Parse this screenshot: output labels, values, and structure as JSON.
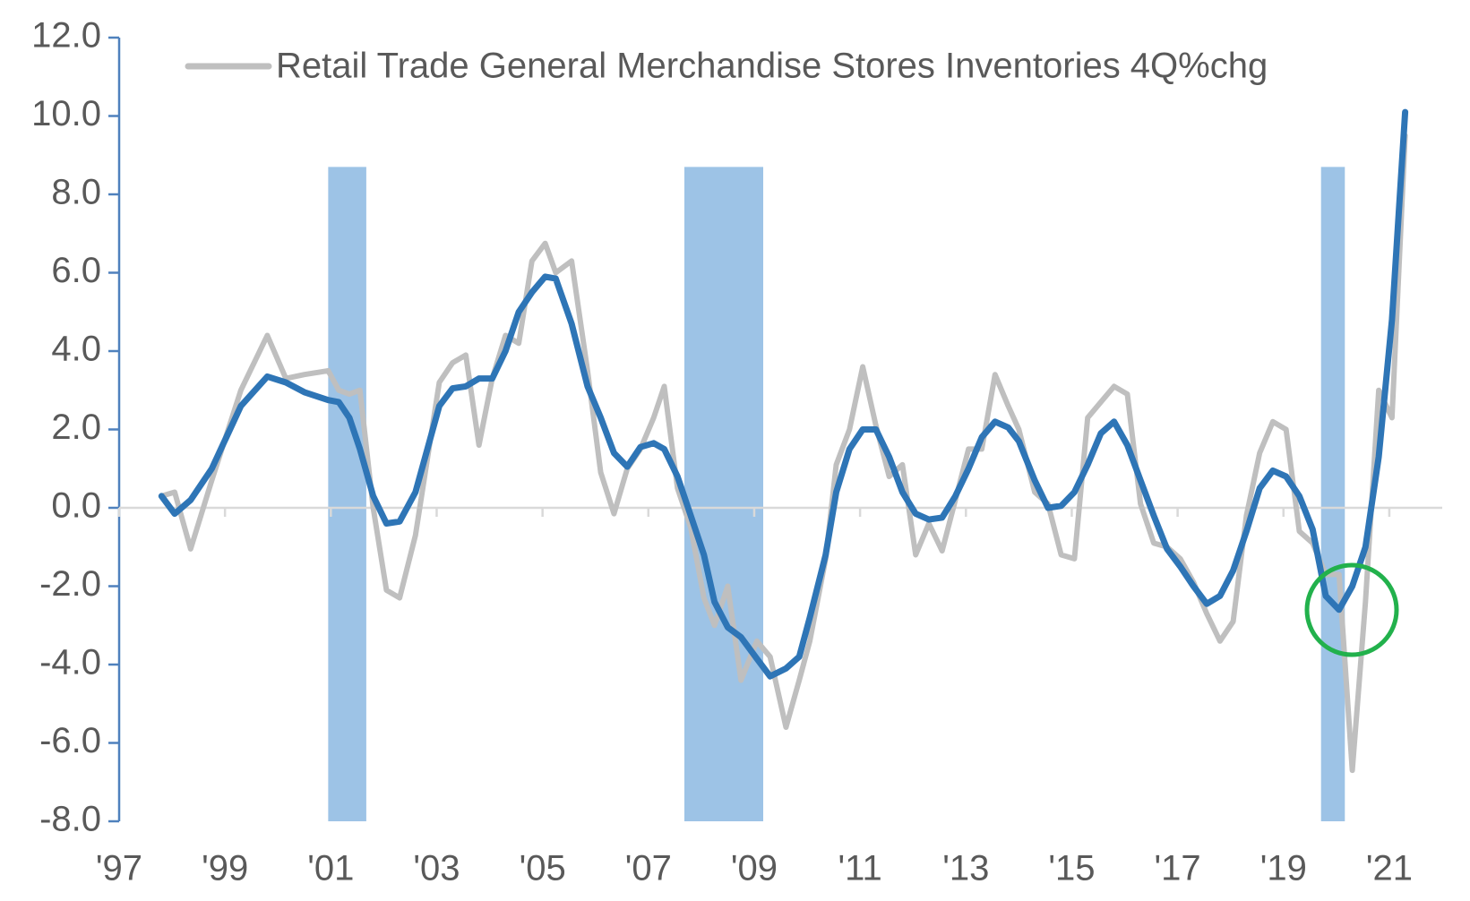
{
  "chart_data": {
    "type": "line",
    "x": [
      1997.8,
      1998.05,
      1998.35,
      1998.75,
      1999.3,
      1999.8,
      2000.15,
      2000.5,
      2000.95,
      2001.15,
      2001.35,
      2001.55,
      2001.8,
      2002.05,
      2002.3,
      2002.6,
      2003.05,
      2003.3,
      2003.55,
      2003.8,
      2004.05,
      2004.3,
      2004.55,
      2004.8,
      2005.05,
      2005.25,
      2005.55,
      2005.85,
      2006.1,
      2006.35,
      2006.6,
      2006.85,
      2007.1,
      2007.3,
      2007.55,
      2007.8,
      2008.05,
      2008.25,
      2008.5,
      2008.75,
      2009.05,
      2009.3,
      2009.6,
      2009.85,
      2010.05,
      2010.35,
      2010.55,
      2010.8,
      2011.05,
      2011.3,
      2011.55,
      2011.8,
      2012.05,
      2012.3,
      2012.55,
      2012.8,
      2013.05,
      2013.3,
      2013.55,
      2013.8,
      2014.0,
      2014.3,
      2014.55,
      2014.8,
      2015.05,
      2015.3,
      2015.55,
      2015.8,
      2016.05,
      2016.3,
      2016.55,
      2016.8,
      2017.05,
      2017.3,
      2017.55,
      2017.8,
      2018.05,
      2018.3,
      2018.55,
      2018.8,
      2019.05,
      2019.3,
      2019.55,
      2019.8,
      2020.05,
      2020.3,
      2020.55,
      2020.8,
      2021.05,
      2021.3
    ],
    "series": [
      {
        "name": "Retail Trade General Merchandise Stores Inventories 4Q%chg",
        "color": "#bfbfbf",
        "values": [
          0.3,
          0.4,
          -1.05,
          0.7,
          3.0,
          4.4,
          3.3,
          3.4,
          3.5,
          3.0,
          2.9,
          3.0,
          0.0,
          -2.1,
          -2.3,
          -0.7,
          3.2,
          3.7,
          3.9,
          1.6,
          3.3,
          4.4,
          4.2,
          6.3,
          6.75,
          6.0,
          6.3,
          3.5,
          0.9,
          -0.15,
          1.0,
          1.5,
          2.3,
          3.1,
          0.5,
          -0.5,
          -2.3,
          -3.0,
          -2.0,
          -4.4,
          -3.4,
          -3.8,
          -5.6,
          -4.4,
          -3.4,
          -1.3,
          1.1,
          2.0,
          3.6,
          2.1,
          0.8,
          1.1,
          -1.2,
          -0.4,
          -1.1,
          0.2,
          1.5,
          1.5,
          3.4,
          2.6,
          2.0,
          0.4,
          0.1,
          -1.2,
          -1.3,
          2.3,
          2.7,
          3.1,
          2.9,
          0.1,
          -0.9,
          -1.0,
          -1.3,
          -1.9,
          -2.7,
          -3.4,
          -2.9,
          -0.2,
          1.4,
          2.2,
          2.0,
          -0.6,
          -0.9,
          -1.7,
          -1.7,
          -6.7,
          -2.4,
          3.0,
          2.3,
          9.5
        ]
      },
      {
        "color": "#2e75b6",
        "values": [
          0.3,
          -0.15,
          0.2,
          1.0,
          2.6,
          3.35,
          3.2,
          2.95,
          2.75,
          2.7,
          2.3,
          1.5,
          0.3,
          -0.4,
          -0.35,
          0.4,
          2.6,
          3.05,
          3.1,
          3.3,
          3.3,
          4.0,
          5.0,
          5.5,
          5.9,
          5.85,
          4.7,
          3.1,
          2.3,
          1.4,
          1.05,
          1.55,
          1.65,
          1.5,
          0.8,
          -0.2,
          -1.2,
          -2.4,
          -3.05,
          -3.3,
          -3.85,
          -4.3,
          -4.1,
          -3.8,
          -2.8,
          -1.2,
          0.4,
          1.5,
          2.0,
          2.0,
          1.3,
          0.4,
          -0.15,
          -0.3,
          -0.25,
          0.3,
          1.0,
          1.8,
          2.2,
          2.05,
          1.7,
          0.7,
          0.0,
          0.05,
          0.4,
          1.1,
          1.9,
          2.2,
          1.6,
          0.7,
          -0.2,
          -1.05,
          -1.5,
          -2.0,
          -2.45,
          -2.25,
          -1.6,
          -0.6,
          0.5,
          0.95,
          0.8,
          0.3,
          -0.55,
          -2.25,
          -2.6,
          -2.0,
          -1.0,
          1.3,
          4.8,
          10.1
        ]
      }
    ],
    "shaded_regions": [
      {
        "x": [
          2000.95,
          2001.67
        ],
        "y": [
          -8,
          8.7
        ]
      },
      {
        "x": [
          2007.68,
          2009.17
        ],
        "y": [
          -8,
          8.7
        ]
      },
      {
        "x": [
          2019.71,
          2020.16
        ],
        "y": [
          -8,
          8.7
        ]
      }
    ],
    "shade_color": "#9dc3e6",
    "xlim": [
      1997,
      2022
    ],
    "ylim": [
      -8,
      12
    ],
    "xticks": [
      {
        "value": 1997,
        "label": "'97"
      },
      {
        "value": 1999,
        "label": "'99"
      },
      {
        "value": 2001,
        "label": "'01"
      },
      {
        "value": 2003,
        "label": "'03"
      },
      {
        "value": 2005,
        "label": "'05"
      },
      {
        "value": 2007,
        "label": "'07"
      },
      {
        "value": 2009,
        "label": "'09"
      },
      {
        "value": 2011,
        "label": "'11"
      },
      {
        "value": 2013,
        "label": "'13"
      },
      {
        "value": 2015,
        "label": "'15"
      },
      {
        "value": 2017,
        "label": "'17"
      },
      {
        "value": 2019,
        "label": "'19"
      },
      {
        "value": 2021,
        "label": "'21"
      }
    ],
    "yticks": [
      {
        "value": -8,
        "label": "-8.0"
      },
      {
        "value": -6,
        "label": "-6.0"
      },
      {
        "value": -4,
        "label": "-4.0"
      },
      {
        "value": -2,
        "label": "-2.0"
      },
      {
        "value": 0,
        "label": "0.0"
      },
      {
        "value": 2,
        "label": "2.0"
      },
      {
        "value": 4,
        "label": "4.0"
      },
      {
        "value": 6,
        "label": "6.0"
      },
      {
        "value": 8,
        "label": "8.0"
      },
      {
        "value": 10,
        "label": "10.0"
      },
      {
        "value": 12,
        "label": "12.0"
      }
    ]
  }
}
